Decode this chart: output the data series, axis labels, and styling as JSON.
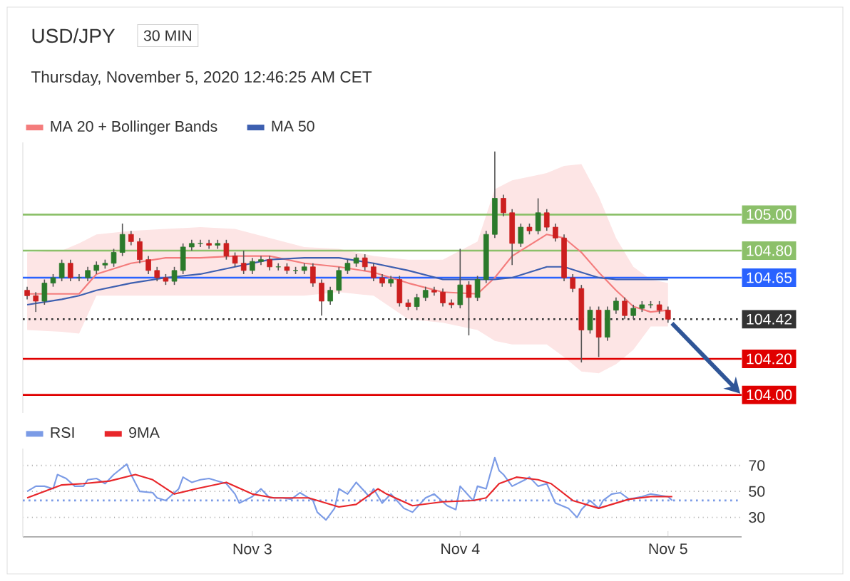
{
  "chart_data": [
    {
      "type": "candlestick",
      "title": "USD/JPY",
      "subtitle": "30 MIN",
      "annotations": [
        "Thursday, November 5, 2020 12:46:25 AM CET"
      ],
      "x": [
        "2020-11-01T22:00",
        "2020-11-01T23:00",
        "2020-11-02T00:00",
        "2020-11-02T01:00",
        "2020-11-02T02:00",
        "2020-11-02T03:00",
        "2020-11-02T04:00",
        "2020-11-02T05:00",
        "2020-11-02T06:00",
        "2020-11-02T07:00",
        "2020-11-02T08:00",
        "2020-11-02T09:00",
        "2020-11-02T10:00",
        "2020-11-02T11:00",
        "2020-11-02T12:00",
        "2020-11-02T13:00",
        "2020-11-02T14:00",
        "2020-11-02T15:00",
        "2020-11-02T16:00",
        "2020-11-02T17:00",
        "2020-11-02T18:00",
        "2020-11-02T19:00",
        "2020-11-02T20:00",
        "2020-11-02T21:00",
        "2020-11-02T22:00",
        "2020-11-02T23:00",
        "2020-11-03T00:00",
        "2020-11-03T01:00",
        "2020-11-03T02:00",
        "2020-11-03T03:00",
        "2020-11-03T04:00",
        "2020-11-03T05:00",
        "2020-11-03T06:00",
        "2020-11-03T07:00",
        "2020-11-03T08:00",
        "2020-11-03T09:00",
        "2020-11-03T10:00",
        "2020-11-03T11:00",
        "2020-11-03T12:00",
        "2020-11-03T13:00",
        "2020-11-03T14:00",
        "2020-11-03T15:00",
        "2020-11-03T16:00",
        "2020-11-03T17:00",
        "2020-11-03T18:00",
        "2020-11-03T19:00",
        "2020-11-03T20:00",
        "2020-11-03T21:00",
        "2020-11-03T22:00",
        "2020-11-03T23:00",
        "2020-11-04T00:00",
        "2020-11-04T01:00",
        "2020-11-04T02:00",
        "2020-11-04T03:00",
        "2020-11-04T04:00",
        "2020-11-04T05:00",
        "2020-11-04T06:00",
        "2020-11-04T07:00",
        "2020-11-04T08:00",
        "2020-11-04T09:00",
        "2020-11-04T10:00",
        "2020-11-04T11:00",
        "2020-11-04T12:00",
        "2020-11-04T13:00",
        "2020-11-04T14:00",
        "2020-11-04T15:00",
        "2020-11-04T16:00",
        "2020-11-04T17:00",
        "2020-11-04T18:00",
        "2020-11-04T19:00",
        "2020-11-04T20:00",
        "2020-11-04T21:00",
        "2020-11-04T22:00",
        "2020-11-04T23:00",
        "2020-11-05T00:00"
      ],
      "ohlc": [
        [
          104.58,
          104.6,
          104.53,
          104.55
        ],
        [
          104.55,
          104.57,
          104.46,
          104.52
        ],
        [
          104.52,
          104.64,
          104.5,
          104.62
        ],
        [
          104.62,
          104.67,
          104.6,
          104.65
        ],
        [
          104.65,
          104.75,
          104.63,
          104.73
        ],
        [
          104.73,
          104.75,
          104.63,
          104.65
        ],
        [
          104.65,
          104.67,
          104.63,
          104.65
        ],
        [
          104.65,
          104.71,
          104.63,
          104.69
        ],
        [
          104.69,
          104.74,
          104.67,
          104.72
        ],
        [
          104.72,
          104.75,
          104.7,
          104.73
        ],
        [
          104.73,
          104.81,
          104.71,
          104.79
        ],
        [
          104.79,
          104.95,
          104.77,
          104.89
        ],
        [
          104.89,
          104.91,
          104.83,
          104.85
        ],
        [
          104.85,
          104.87,
          104.73,
          104.75
        ],
        [
          104.75,
          104.77,
          104.67,
          104.69
        ],
        [
          104.69,
          104.71,
          104.63,
          104.65
        ],
        [
          104.65,
          104.67,
          104.61,
          104.63
        ],
        [
          104.63,
          104.71,
          104.61,
          104.69
        ],
        [
          104.69,
          104.84,
          104.67,
          104.82
        ],
        [
          104.82,
          104.86,
          104.8,
          104.84
        ],
        [
          104.84,
          104.86,
          104.82,
          104.84
        ],
        [
          104.84,
          104.86,
          104.81,
          104.83
        ],
        [
          104.83,
          104.86,
          104.81,
          104.84
        ],
        [
          104.84,
          104.86,
          104.75,
          104.77
        ],
        [
          104.77,
          104.79,
          104.71,
          104.73
        ],
        [
          104.73,
          104.8,
          104.67,
          104.69
        ],
        [
          104.69,
          104.76,
          104.67,
          104.74
        ],
        [
          104.74,
          104.77,
          104.72,
          104.75
        ],
        [
          104.75,
          104.77,
          104.69,
          104.71
        ],
        [
          104.71,
          104.73,
          104.69,
          104.71
        ],
        [
          104.71,
          104.73,
          104.67,
          104.69
        ],
        [
          104.69,
          104.71,
          104.67,
          104.69
        ],
        [
          104.69,
          104.73,
          104.67,
          104.71
        ],
        [
          104.71,
          104.73,
          104.6,
          104.62
        ],
        [
          104.62,
          104.64,
          104.44,
          104.52
        ],
        [
          104.52,
          104.6,
          104.5,
          104.58
        ],
        [
          104.58,
          104.71,
          104.56,
          104.69
        ],
        [
          104.69,
          104.75,
          104.67,
          104.73
        ],
        [
          104.73,
          104.78,
          104.71,
          104.76
        ],
        [
          104.76,
          104.78,
          104.69,
          104.71
        ],
        [
          104.71,
          104.73,
          104.63,
          104.65
        ],
        [
          104.65,
          104.67,
          104.6,
          104.62
        ],
        [
          104.62,
          104.66,
          104.6,
          104.64
        ],
        [
          104.64,
          104.66,
          104.49,
          104.51
        ],
        [
          104.51,
          104.53,
          104.47,
          104.49
        ],
        [
          104.49,
          104.56,
          104.47,
          104.54
        ],
        [
          104.54,
          104.6,
          104.52,
          104.58
        ],
        [
          104.58,
          104.6,
          104.55,
          104.57
        ],
        [
          104.57,
          104.59,
          104.49,
          104.51
        ],
        [
          104.51,
          104.53,
          104.48,
          104.5
        ],
        [
          104.5,
          104.81,
          104.48,
          104.61
        ],
        [
          104.61,
          104.63,
          104.33,
          104.54
        ],
        [
          104.54,
          104.66,
          104.52,
          104.64
        ],
        [
          104.64,
          104.91,
          104.62,
          104.89
        ],
        [
          104.89,
          105.35,
          104.87,
          105.09
        ],
        [
          105.09,
          105.11,
          104.99,
          105.01
        ],
        [
          105.01,
          105.03,
          104.72,
          104.84
        ],
        [
          104.84,
          104.95,
          104.82,
          104.93
        ],
        [
          104.93,
          104.95,
          104.89,
          104.91
        ],
        [
          104.91,
          105.09,
          104.89,
          105.01
        ],
        [
          105.01,
          105.03,
          104.91,
          104.93
        ],
        [
          104.93,
          104.95,
          104.85,
          104.87
        ],
        [
          104.87,
          104.89,
          104.63,
          104.65
        ],
        [
          104.65,
          104.67,
          104.57,
          104.59
        ],
        [
          104.59,
          104.61,
          104.18,
          104.36
        ],
        [
          104.36,
          104.49,
          104.34,
          104.47
        ],
        [
          104.47,
          104.49,
          104.21,
          104.32
        ],
        [
          104.32,
          104.49,
          104.3,
          104.47
        ],
        [
          104.47,
          104.54,
          104.45,
          104.52
        ],
        [
          104.52,
          104.54,
          104.42,
          104.44
        ],
        [
          104.44,
          104.5,
          104.42,
          104.48
        ],
        [
          104.48,
          104.52,
          104.46,
          104.5
        ],
        [
          104.5,
          104.52,
          104.48,
          104.5
        ],
        [
          104.5,
          104.52,
          104.45,
          104.47
        ],
        [
          104.47,
          104.49,
          104.4,
          104.42
        ]
      ],
      "series": [
        {
          "name": "MA 20 + Bollinger Bands",
          "type": "line",
          "color": "#f47c7c",
          "x": [
            "2020-11-01T22:00",
            "2020-11-02T02:00",
            "2020-11-02T04:00",
            "2020-11-02T06:00",
            "2020-11-02T10:00",
            "2020-11-02T14:00",
            "2020-11-02T18:00",
            "2020-11-02T22:00",
            "2020-11-03T02:00",
            "2020-11-03T06:00",
            "2020-11-03T10:00",
            "2020-11-03T14:00",
            "2020-11-03T18:00",
            "2020-11-03T22:00",
            "2020-11-04T02:00",
            "2020-11-04T04:00",
            "2020-11-04T06:00",
            "2020-11-04T10:00",
            "2020-11-04T12:00",
            "2020-11-04T14:00",
            "2020-11-04T16:00",
            "2020-11-04T18:00",
            "2020-11-04T20:00",
            "2020-11-04T22:00",
            "2020-11-05T00:00"
          ],
          "values": [
            104.56,
            104.56,
            104.56,
            104.67,
            104.73,
            104.76,
            104.76,
            104.77,
            104.77,
            104.73,
            104.71,
            104.68,
            104.62,
            104.57,
            104.56,
            104.65,
            104.77,
            104.89,
            104.87,
            104.79,
            104.68,
            104.58,
            104.49,
            104.46,
            104.47
          ],
          "upper": [
            104.79,
            104.8,
            104.84,
            104.89,
            104.91,
            104.92,
            104.93,
            104.92,
            104.87,
            104.82,
            104.81,
            104.77,
            104.75,
            104.75,
            104.85,
            105.14,
            105.19,
            105.23,
            105.27,
            105.28,
            105.1,
            104.87,
            104.71,
            104.64,
            104.62
          ],
          "lower": [
            104.36,
            104.35,
            104.34,
            104.55,
            104.55,
            104.55,
            104.55,
            104.55,
            104.55,
            104.55,
            104.57,
            104.55,
            104.42,
            104.4,
            104.36,
            104.3,
            104.28,
            104.28,
            104.21,
            104.13,
            104.12,
            104.17,
            104.25,
            104.38,
            104.38
          ]
        },
        {
          "name": "MA 50",
          "type": "line",
          "color": "#3d5fb0",
          "x": [
            "2020-11-01T22:00",
            "2020-11-02T02:00",
            "2020-11-02T04:00",
            "2020-11-02T06:00",
            "2020-11-02T10:00",
            "2020-11-02T14:00",
            "2020-11-02T18:00",
            "2020-11-02T22:00",
            "2020-11-03T02:00",
            "2020-11-03T06:00",
            "2020-11-03T10:00",
            "2020-11-03T14:00",
            "2020-11-03T18:00",
            "2020-11-03T22:00",
            "2020-11-04T02:00",
            "2020-11-04T04:00",
            "2020-11-04T06:00",
            "2020-11-04T10:00",
            "2020-11-04T12:00",
            "2020-11-04T14:00",
            "2020-11-04T16:00",
            "2020-11-04T18:00",
            "2020-11-04T20:00",
            "2020-11-04T22:00",
            "2020-11-05T00:00"
          ],
          "values": [
            104.5,
            104.53,
            104.55,
            104.58,
            104.62,
            104.65,
            104.67,
            104.71,
            104.75,
            104.76,
            104.76,
            104.73,
            104.69,
            104.64,
            104.64,
            104.64,
            104.65,
            104.71,
            104.71,
            104.68,
            104.65,
            104.64,
            104.64,
            104.64,
            104.64
          ]
        }
      ],
      "ref_lines": [
        {
          "axis": "y",
          "value": 105.0,
          "label": "105.00",
          "color": "#8cc06a",
          "line_style": "solid"
        },
        {
          "axis": "y",
          "value": 104.8,
          "label": "104.80",
          "color": "#8cc06a",
          "line_style": "solid"
        },
        {
          "axis": "y",
          "value": 104.65,
          "label": "104.65",
          "color": "#2962ff",
          "line_style": "solid"
        },
        {
          "axis": "y",
          "value": 104.42,
          "label": "104.42",
          "color": "#333333",
          "line_style": "dotted"
        },
        {
          "axis": "y",
          "value": 104.2,
          "label": "104.20",
          "color": "#e00000",
          "line_style": "solid"
        },
        {
          "axis": "y",
          "value": 104.0,
          "label": "104.00",
          "color": "#e00000",
          "line_style": "solid"
        }
      ],
      "xlim": [
        "2020-11-01T21:30",
        "2020-11-05T08:30"
      ],
      "ylim": [
        103.9,
        105.4
      ],
      "tick_labels": false,
      "legend": "top left"
    },
    {
      "type": "line",
      "series": [
        {
          "name": "RSI",
          "color": "#7b9be6",
          "x": [
            "2020-11-01T22:00",
            "2020-11-01T23:00",
            "2020-11-02T00:00",
            "2020-11-02T01:00",
            "2020-11-02T01:30",
            "2020-11-02T02:30",
            "2020-11-02T03:30",
            "2020-11-02T04:30",
            "2020-11-02T05:00",
            "2020-11-02T06:00",
            "2020-11-02T07:00",
            "2020-11-02T08:00",
            "2020-11-02T09:30",
            "2020-11-02T10:00",
            "2020-11-02T11:00",
            "2020-11-02T12:30",
            "2020-11-02T13:00",
            "2020-11-02T14:00",
            "2020-11-02T15:30",
            "2020-11-02T16:00",
            "2020-11-02T17:00",
            "2020-11-02T18:00",
            "2020-11-02T19:00",
            "2020-11-02T21:00",
            "2020-11-02T22:00",
            "2020-11-02T22:30",
            "2020-11-03T00:00",
            "2020-11-03T01:00",
            "2020-11-03T02:00",
            "2020-11-03T03:30",
            "2020-11-03T04:30",
            "2020-11-03T05:30",
            "2020-11-03T07:00",
            "2020-11-03T07:30",
            "2020-11-03T08:30",
            "2020-11-03T09:30",
            "2020-11-03T10:00",
            "2020-11-03T11:00",
            "2020-11-03T12:00",
            "2020-11-03T13:30",
            "2020-11-03T14:00",
            "2020-11-03T15:00",
            "2020-11-03T16:00",
            "2020-11-03T17:30",
            "2020-11-03T18:30",
            "2020-11-03T20:00",
            "2020-11-03T21:00",
            "2020-11-03T22:30",
            "2020-11-03T23:30",
            "2020-11-04T00:00",
            "2020-11-04T01:30",
            "2020-11-04T02:00",
            "2020-11-04T03:00",
            "2020-11-04T04:00",
            "2020-11-04T04:30",
            "2020-11-04T05:00",
            "2020-11-04T06:00",
            "2020-11-04T07:30",
            "2020-11-04T08:00",
            "2020-11-04T09:00",
            "2020-11-04T10:00",
            "2020-11-04T11:00",
            "2020-11-04T12:30",
            "2020-11-04T13:30",
            "2020-11-04T14:00",
            "2020-11-04T15:00",
            "2020-11-04T16:00",
            "2020-11-04T16:30",
            "2020-11-04T17:30",
            "2020-11-04T18:30",
            "2020-11-04T19:30",
            "2020-11-04T21:00",
            "2020-11-04T22:00",
            "2020-11-05T00:00",
            "2020-11-05T00:30"
          ],
          "values": [
            50,
            54,
            54,
            52,
            63,
            60,
            54,
            54,
            59,
            60,
            56,
            63,
            71,
            63,
            50,
            49,
            45,
            43,
            52,
            61,
            57,
            59,
            60,
            56,
            48,
            41,
            46,
            52,
            45,
            45,
            44,
            49,
            43,
            34,
            28,
            37,
            52,
            48,
            57,
            46,
            52,
            41,
            48,
            37,
            34,
            45,
            48,
            39,
            36,
            54,
            43,
            54,
            52,
            76,
            66,
            63,
            54,
            59,
            61,
            54,
            56,
            41,
            37,
            30,
            36,
            43,
            37,
            43,
            48,
            49,
            44,
            46,
            48,
            46,
            43
          ]
        },
        {
          "name": "9MA",
          "color": "#e8262a",
          "x": [
            "2020-11-01T22:00",
            "2020-11-02T00:00",
            "2020-11-02T02:00",
            "2020-11-02T04:30",
            "2020-11-02T07:30",
            "2020-11-02T10:30",
            "2020-11-02T12:30",
            "2020-11-02T15:00",
            "2020-11-02T17:30",
            "2020-11-02T21:00",
            "2020-11-03T00:00",
            "2020-11-03T02:30",
            "2020-11-03T06:30",
            "2020-11-03T10:00",
            "2020-11-03T12:00",
            "2020-11-03T14:30",
            "2020-11-03T15:30",
            "2020-11-03T18:30",
            "2020-11-03T22:00",
            "2020-11-04T01:30",
            "2020-11-04T03:00",
            "2020-11-04T04:30",
            "2020-11-04T06:30",
            "2020-11-04T09:00",
            "2020-11-04T10:30",
            "2020-11-04T13:00",
            "2020-11-04T16:00",
            "2020-11-04T19:30",
            "2020-11-04T22:00",
            "2020-11-05T00:30"
          ],
          "values": [
            45,
            50,
            55,
            56,
            58,
            63,
            59,
            48,
            52,
            57,
            48,
            45,
            45,
            38,
            40,
            52,
            48,
            39,
            42,
            43,
            45,
            56,
            61,
            59,
            56,
            43,
            37,
            44,
            46,
            46
          ]
        }
      ],
      "ref_lines": [
        {
          "axis": "y",
          "value": 43,
          "color": "#7b9be6",
          "line_style": "dotted"
        }
      ],
      "xlim": [
        "2020-11-01T21:30",
        "2020-11-05T08:30"
      ],
      "ylim": [
        15,
        83
      ],
      "xticks": [
        {
          "value": "2020-11-03",
          "label": "Nov 3"
        },
        {
          "value": "2020-11-04",
          "label": "Nov 4"
        },
        {
          "value": "2020-11-05",
          "label": "Nov 5"
        }
      ],
      "yticks": [
        30,
        50,
        70
      ],
      "grid": "y",
      "legend": "top left"
    }
  ]
}
